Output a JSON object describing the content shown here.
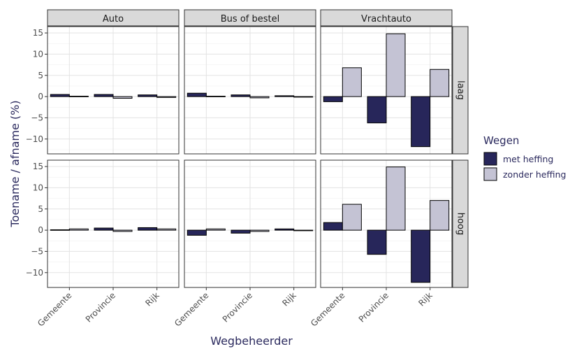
{
  "chart_data": {
    "type": "bar",
    "facet_columns": [
      "Auto",
      "Bus of bestel",
      "Vrachtauto"
    ],
    "facet_rows": [
      "laag",
      "hoog"
    ],
    "categories": [
      "Gemeente",
      "Provincie",
      "Rijk"
    ],
    "xlabel": "Wegbeheerder",
    "ylabel": "Toename / afname (%)",
    "ylim": [
      -13.5,
      16.5
    ],
    "yticks": [
      -10,
      -5,
      0,
      5,
      10,
      15
    ],
    "ytick_labels": [
      "−10",
      "−5",
      "0",
      "5",
      "10",
      "15"
    ],
    "grid": true,
    "legend": {
      "title": "Wegen",
      "position": "right",
      "entries": [
        {
          "name": "met heffing",
          "color": "#27265a"
        },
        {
          "name": "zonder heffing",
          "color": "#c4c3d4"
        }
      ]
    },
    "series": [
      {
        "name": "met heffing",
        "color": "#27265a",
        "panels": {
          "laag": {
            "Auto": [
              0.5,
              0.5,
              0.4
            ],
            "Bus of bestel": [
              0.8,
              0.4,
              0.2
            ],
            "Vrachtauto": [
              -1.2,
              -6.2,
              -11.8
            ]
          },
          "hoog": {
            "Auto": [
              0.1,
              0.5,
              0.6
            ],
            "Bus of bestel": [
              -1.2,
              -0.7,
              0.3
            ],
            "Vrachtauto": [
              1.8,
              -5.7,
              -12.3
            ]
          }
        }
      },
      {
        "name": "zonder heffing",
        "color": "#c4c3d4",
        "panels": {
          "laag": {
            "Auto": [
              0.1,
              -0.4,
              -0.2
            ],
            "Bus of bestel": [
              0.1,
              -0.3,
              0.0
            ],
            "Vrachtauto": [
              6.8,
              14.8,
              6.4
            ]
          },
          "hoog": {
            "Auto": [
              0.3,
              -0.3,
              0.3
            ],
            "Bus of bestel": [
              0.3,
              -0.3,
              -0.1
            ],
            "Vrachtauto": [
              6.1,
              14.9,
              7.0
            ]
          }
        }
      }
    ]
  }
}
